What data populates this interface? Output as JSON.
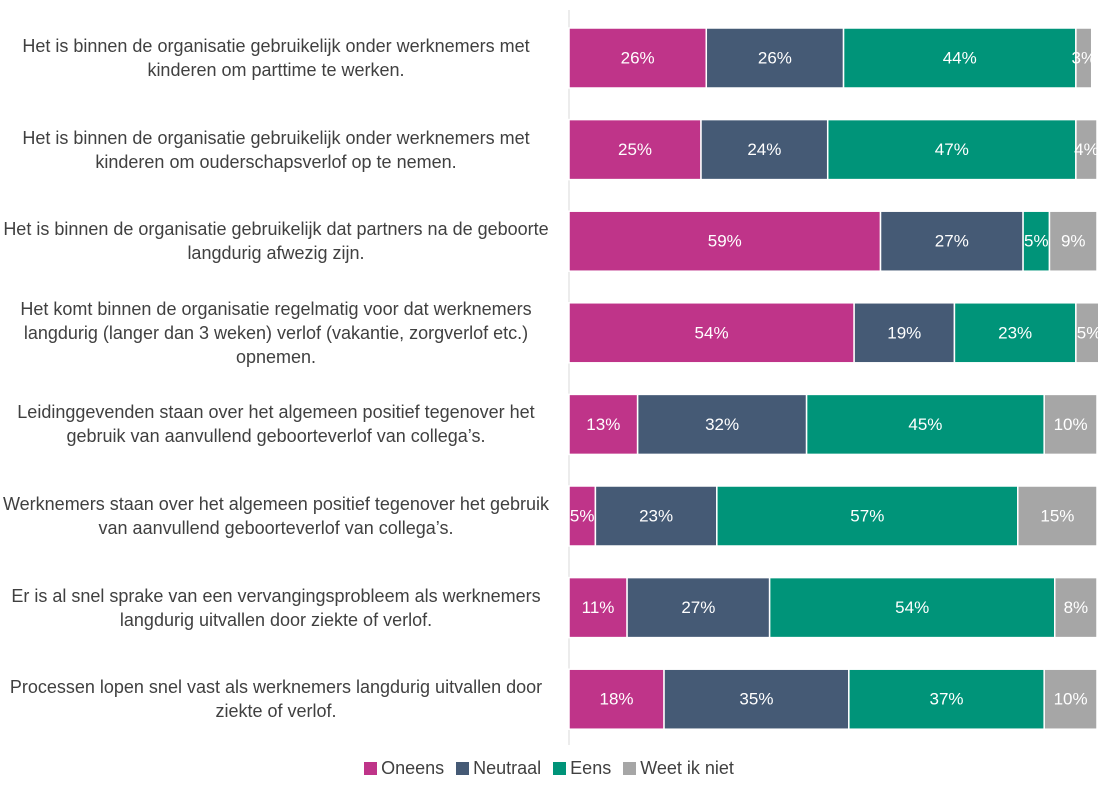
{
  "chart_data": {
    "type": "stacked-barh",
    "categories": [
      "Het is binnen de organisatie gebruikelijk onder werknemers met kinderen om parttime te werken.",
      "Het is binnen de organisatie gebruikelijk onder werknemers met kinderen om ouderschapsverlof op te nemen.",
      "Het is binnen de organisatie gebruikelijk dat partners na de geboorte langdurig afwezig zijn.",
      "Het komt binnen de organisatie regelmatig voor dat werknemers langdurig (langer dan 3 weken) verlof (vakantie, zorgverlof etc.) opnemen.",
      "Leidinggevenden staan over het algemeen positief tegenover het gebruik van aanvullend geboorteverlof van collega’s.",
      "Werknemers staan over het algemeen positief tegenover het gebruik van aanvullend geboorteverlof van collega’s.",
      "Er is al snel sprake van een vervangingsprobleem als werknemers langdurig uitvallen door ziekte of verlof.",
      "Processen lopen snel vast als werknemers langdurig uitvallen door ziekte of verlof."
    ],
    "series": [
      {
        "name": "Oneens",
        "color": "#bf3489",
        "values": [
          26,
          25,
          59,
          54,
          13,
          5,
          11,
          18
        ],
        "value_labels": [
          "26%",
          "25%",
          "59%",
          "54%",
          "13%",
          "5%",
          "11%",
          "18%"
        ]
      },
      {
        "name": "Neutraal",
        "color": "#455a75",
        "values": [
          26,
          24,
          27,
          19,
          32,
          23,
          27,
          35
        ],
        "value_labels": [
          "26%",
          "24%",
          "27%",
          "19%",
          "32%",
          "23%",
          "27%",
          "35%"
        ]
      },
      {
        "name": "Eens",
        "color": "#009479",
        "values": [
          44,
          47,
          5,
          23,
          45,
          57,
          54,
          37
        ],
        "value_labels": [
          "44%",
          "47%",
          "5%",
          "23%",
          "45%",
          "57%",
          "54%",
          "37%"
        ]
      },
      {
        "name": "Weet ik niet",
        "color": "#a6a6a6",
        "values": [
          3,
          4,
          9,
          5,
          10,
          15,
          8,
          10
        ],
        "value_labels": [
          "3%",
          "4%",
          "9%",
          "5%",
          "10%",
          "15%",
          "8%",
          "10%"
        ]
      }
    ],
    "xlim": [
      0,
      100
    ]
  }
}
